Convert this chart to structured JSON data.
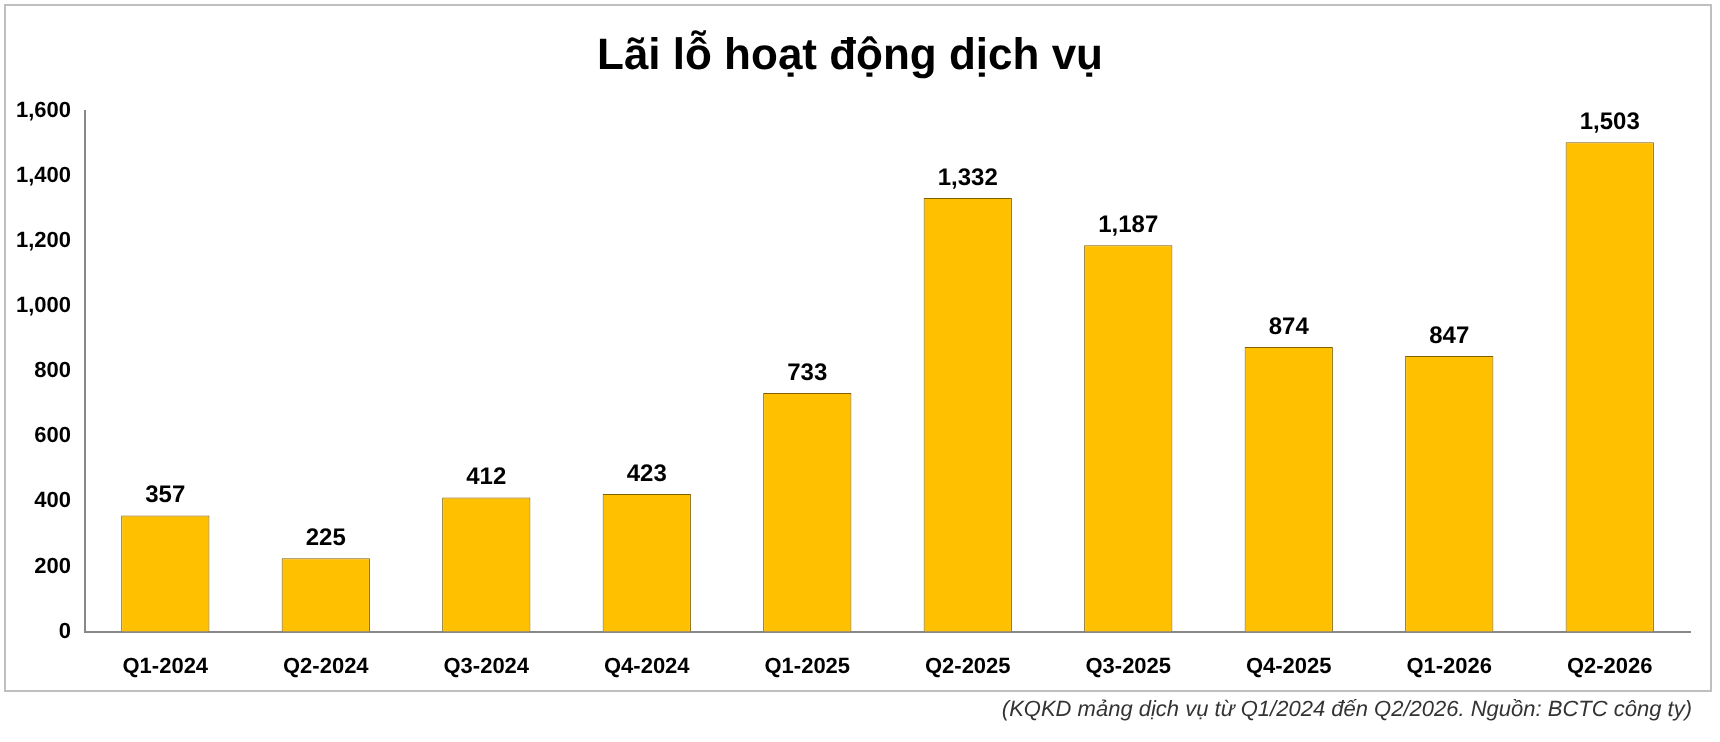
{
  "chart_data": {
    "type": "bar",
    "title": "Lãi lỗ hoạt động dịch vụ",
    "categories": [
      "Q1-2024",
      "Q2-2024",
      "Q3-2024",
      "Q4-2024",
      "Q1-2025",
      "Q2-2025",
      "Q3-2025",
      "Q4-2025",
      "Q1-2026",
      "Q2-2026"
    ],
    "values": [
      357,
      225,
      412,
      423,
      733,
      1332,
      1187,
      874,
      847,
      1503
    ],
    "value_labels": [
      "357",
      "225",
      "412",
      "423",
      "733",
      "1,332",
      "1,187",
      "874",
      "847",
      "1,503"
    ],
    "color": "#ffc000",
    "ylim": [
      0,
      1600
    ],
    "yticks": [
      {
        "value": 0,
        "label": "0"
      },
      {
        "value": 200,
        "label": "200"
      },
      {
        "value": 400,
        "label": "400"
      },
      {
        "value": 600,
        "label": "600"
      },
      {
        "value": 800,
        "label": "800"
      },
      {
        "value": 1000,
        "label": "1,000"
      },
      {
        "value": 1200,
        "label": "1,200"
      },
      {
        "value": 1400,
        "label": "1,400"
      },
      {
        "value": 1600,
        "label": "1,600"
      }
    ],
    "grid": false,
    "legend": false,
    "annotations": [
      "(KQKD mảng dịch vụ từ Q1/2024 đến Q2/2026. Nguồn: BCTC công ty)"
    ]
  }
}
